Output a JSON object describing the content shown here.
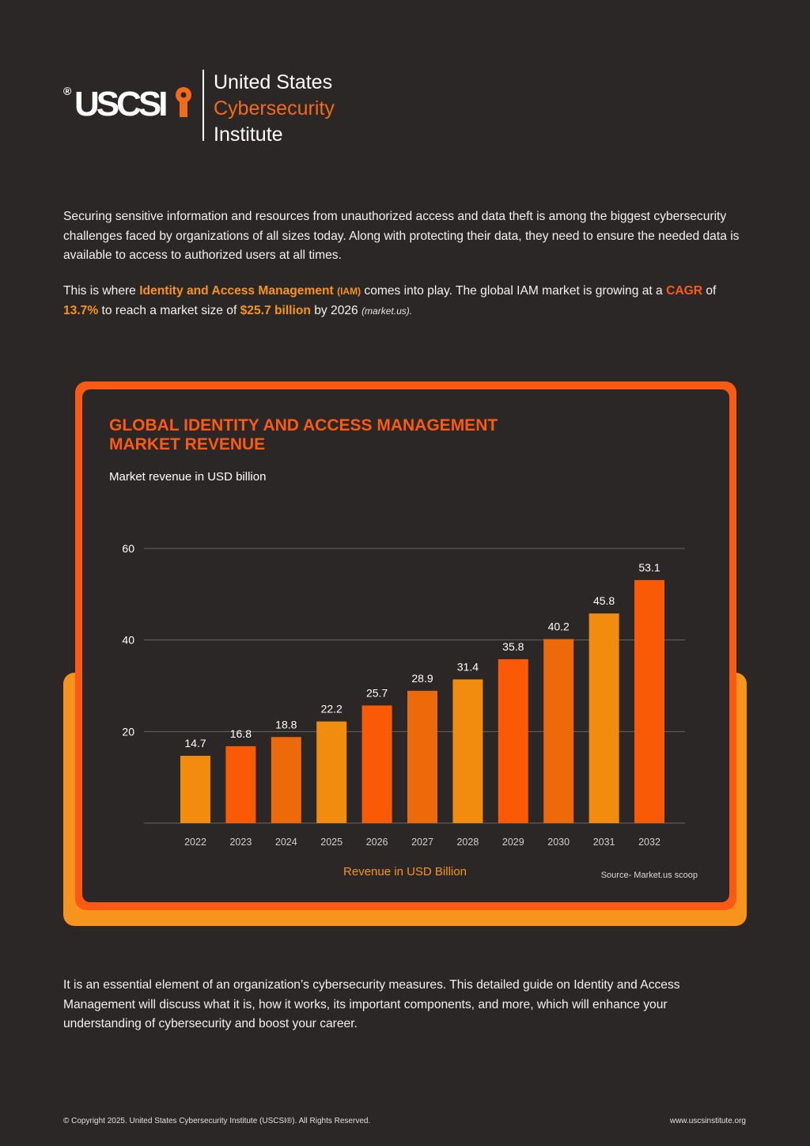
{
  "logo": {
    "registered_mark": "®",
    "wordmark": "USCSI",
    "line1": "United States",
    "line2": "Cybersecurity",
    "line3": "Institute"
  },
  "intro": {
    "paragraph1": "Securing sensitive information and resources from unauthorized access and data theft is among the biggest cybersecurity challenges faced by organizations of all sizes today. Along with protecting their data, they need to ensure the needed data is available to access to authorized users at all times.",
    "p2_a": "This is where ",
    "p2_iam_term": "Identity and Access Management",
    "p2_iam_abbr": "(IAM)",
    "p2_b": " comes into play. The global IAM market is growing at a ",
    "p2_cagr": "CAGR",
    "p2_c": " of ",
    "p2_rate": "13.7%",
    "p2_d": " to reach a market size of ",
    "p2_size": "$25.7 billion",
    "p2_e": " by 2026 ",
    "p2_cite": "(market.us)."
  },
  "chart_data": {
    "type": "bar",
    "title": "GLOBAL IDENTITY AND ACCESS MANAGEMENT MARKET REVENUE",
    "subtitle": "Market revenue in USD billion",
    "categories": [
      "2022",
      "2023",
      "2024",
      "2025",
      "2026",
      "2027",
      "2028",
      "2029",
      "2030",
      "2031",
      "2032"
    ],
    "values": [
      14.7,
      16.8,
      18.8,
      22.2,
      25.7,
      28.9,
      31.4,
      35.8,
      40.2,
      45.8,
      53.1
    ],
    "bar_colors": [
      "#f28c0f",
      "#fa5a05",
      "#ec6a0a",
      "#f28c0f",
      "#fa5a05",
      "#ec6a0a",
      "#f28c0f",
      "#fa5a05",
      "#ec6a0a",
      "#f28c0f",
      "#fa5a05"
    ],
    "yticks": [
      20,
      40,
      60
    ],
    "ylim": [
      0,
      60
    ],
    "grid": true,
    "xlabel": "Revenue in USD Billion",
    "source": "Source- Market.us scoop"
  },
  "closing": {
    "paragraph": "It is an essential element of an organization’s cybersecurity measures. This detailed guide on Identity and Access Management will discuss what it is, how it works, its important components, and more, which will enhance your understanding of cybersecurity and boost your career."
  },
  "footer": {
    "copyright": "© Copyright 2025. United States Cybersecurity Institute (USCSI®). All Rights Reserved.",
    "website": "www.uscsinstitute.org"
  },
  "colors": {
    "background": "#2b2726",
    "orange": "#f7941d",
    "red_orange": "#fa5a14"
  }
}
